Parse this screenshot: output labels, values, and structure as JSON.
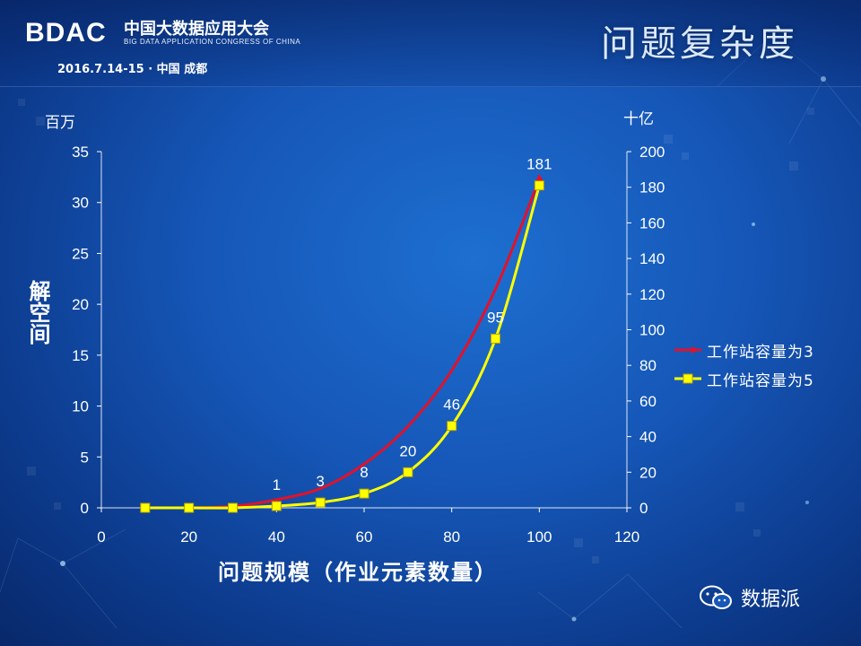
{
  "header": {
    "logo": "BDAC",
    "congress_cn": "中国大数据应用大会",
    "congress_en": "BIG DATA APPLICATION CONGRESS OF CHINA",
    "event_date": "2016.7.14-15 · 中国 成都",
    "slide_title": "问题复杂度"
  },
  "watermark": {
    "icon": "wechat-icon",
    "text": "数据派"
  },
  "colors": {
    "series_red": "#e3112a",
    "series_yellow": "#ffff00",
    "marker_fill": "#ffff00",
    "marker_edge": "#b8a200"
  },
  "chart_data": {
    "type": "line",
    "xlabel": "问题规模（作业元素数量）",
    "ylabel": "解空间",
    "y_unit_left": "百万",
    "y_unit_right": "十亿",
    "x_ticks": [
      0,
      20,
      40,
      60,
      80,
      100,
      120
    ],
    "y_left_ticks": [
      0,
      5,
      10,
      15,
      20,
      25,
      30,
      35
    ],
    "y_right_ticks": [
      0,
      20,
      40,
      60,
      80,
      100,
      120,
      140,
      160,
      180,
      200
    ],
    "xlim": [
      0,
      120
    ],
    "ylim_left": [
      0,
      35
    ],
    "ylim_right": [
      0,
      200
    ],
    "legend_position": "right",
    "series": [
      {
        "name": "工作站容量为3",
        "axis": "left",
        "x": [
          10,
          20,
          30,
          40,
          50,
          60,
          70,
          80,
          90,
          100
        ],
        "values": [
          0,
          0.01,
          0.15,
          0.8,
          1.9,
          4.3,
          8.0,
          13.5,
          21.5,
          32.3
        ]
      },
      {
        "name": "工作站容量为5",
        "axis": "right",
        "x": [
          10,
          20,
          30,
          40,
          50,
          60,
          70,
          80,
          90,
          100
        ],
        "values": [
          0,
          0,
          0,
          1,
          3,
          8,
          20,
          46,
          95,
          181
        ],
        "labels": [
          "",
          "",
          "",
          "1",
          "3",
          "8",
          "20",
          "46",
          "95",
          "181"
        ]
      }
    ]
  }
}
